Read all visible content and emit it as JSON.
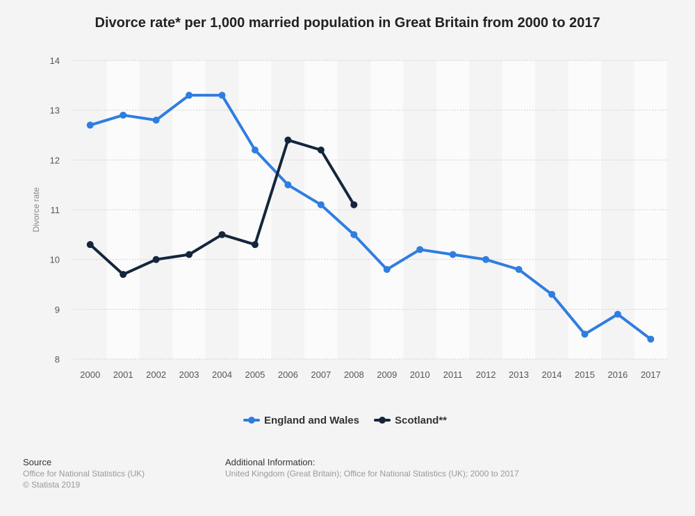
{
  "chart_data": {
    "type": "line",
    "title": "Divorce rate* per 1,000 married population in Great Britain from 2000 to 2017",
    "ylabel": "Divorce rate",
    "xlabel": "",
    "ylim": [
      8,
      14
    ],
    "yticks": [
      8,
      9,
      10,
      11,
      12,
      13,
      14
    ],
    "categories": [
      "2000",
      "2001",
      "2002",
      "2003",
      "2004",
      "2005",
      "2006",
      "2007",
      "2008",
      "2009",
      "2010",
      "2011",
      "2012",
      "2013",
      "2014",
      "2015",
      "2016",
      "2017"
    ],
    "series": [
      {
        "name": "England and Wales",
        "color": "#2f7de1",
        "values": [
          12.7,
          12.9,
          12.8,
          13.3,
          13.3,
          12.2,
          11.5,
          11.1,
          10.5,
          9.8,
          10.2,
          10.1,
          10.0,
          9.8,
          9.3,
          8.5,
          8.9,
          8.4
        ]
      },
      {
        "name": "Scotland**",
        "color": "#14263d",
        "values": [
          10.3,
          9.7,
          10.0,
          10.1,
          10.5,
          10.3,
          12.4,
          12.2,
          11.1,
          null,
          null,
          null,
          null,
          null,
          null,
          null,
          null,
          null
        ]
      }
    ],
    "grid": true,
    "legend_position": "bottom-center"
  },
  "footer": {
    "source_heading": "Source",
    "source_line1": "Office for National Statistics (UK)",
    "source_line2": "© Statista 2019",
    "info_heading": "Additional Information:",
    "info_line1": "United Kingdom (Great Britain); Office for National Statistics (UK); 2000 to 2017"
  }
}
